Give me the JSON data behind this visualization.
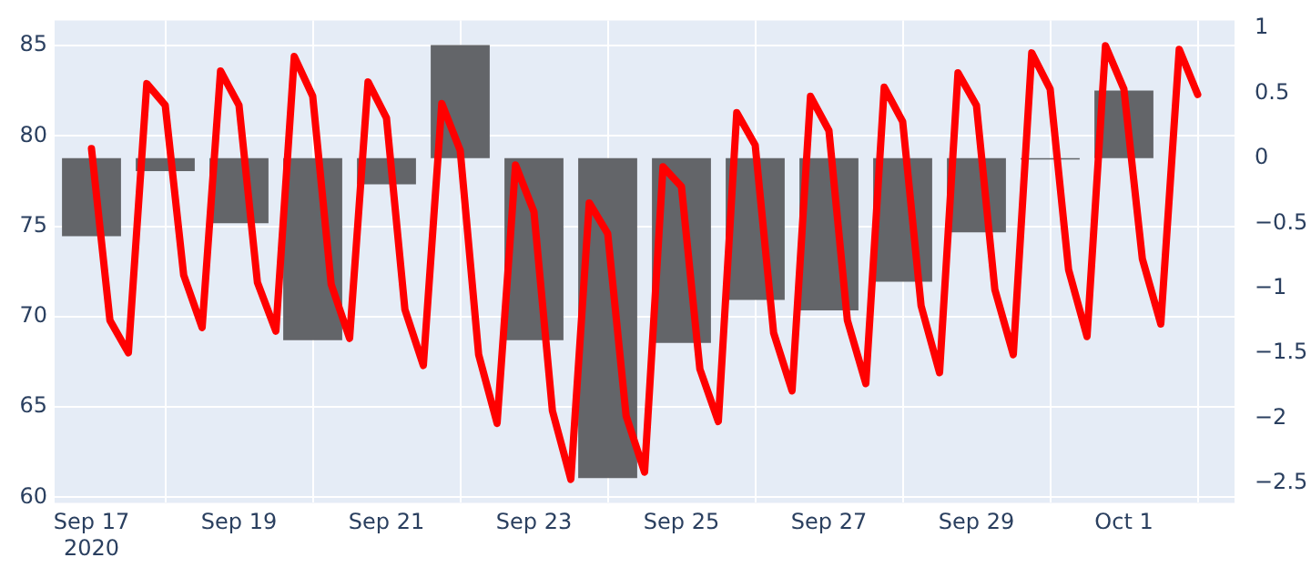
{
  "chart_data": {
    "type": "line",
    "series": [
      {
        "color": "#ff0000",
        "axis": "y",
        "x": [
          "2020-09-17T00:00",
          "2020-09-17T06:00",
          "2020-09-17T12:00",
          "2020-09-17T18:00",
          "2020-09-18T00:00",
          "2020-09-18T06:00",
          "2020-09-18T12:00",
          "2020-09-18T18:00",
          "2020-09-19T00:00",
          "2020-09-19T06:00",
          "2020-09-19T12:00",
          "2020-09-19T18:00",
          "2020-09-20T00:00",
          "2020-09-20T06:00",
          "2020-09-20T12:00",
          "2020-09-20T18:00",
          "2020-09-21T00:00",
          "2020-09-21T06:00",
          "2020-09-21T12:00",
          "2020-09-21T18:00",
          "2020-09-22T00:00",
          "2020-09-22T06:00",
          "2020-09-22T12:00",
          "2020-09-22T18:00",
          "2020-09-23T00:00",
          "2020-09-23T06:00",
          "2020-09-23T12:00",
          "2020-09-23T18:00",
          "2020-09-24T00:00",
          "2020-09-24T06:00",
          "2020-09-24T12:00",
          "2020-09-24T18:00",
          "2020-09-25T00:00",
          "2020-09-25T06:00",
          "2020-09-25T12:00",
          "2020-09-25T18:00",
          "2020-09-26T00:00",
          "2020-09-26T06:00",
          "2020-09-26T12:00",
          "2020-09-26T18:00",
          "2020-09-27T00:00",
          "2020-09-27T06:00",
          "2020-09-27T12:00",
          "2020-09-27T18:00",
          "2020-09-28T00:00",
          "2020-09-28T06:00",
          "2020-09-28T12:00",
          "2020-09-28T18:00",
          "2020-09-29T00:00",
          "2020-09-29T06:00",
          "2020-09-29T12:00",
          "2020-09-29T18:00",
          "2020-09-30T00:00",
          "2020-09-30T06:00",
          "2020-09-30T12:00",
          "2020-09-30T18:00",
          "2020-10-01T00:00",
          "2020-10-01T06:00",
          "2020-10-01T12:00",
          "2020-10-01T18:00",
          "2020-10-02T00:00"
        ],
        "values": [
          79.3,
          69.8,
          68.0,
          82.9,
          81.7,
          72.3,
          69.4,
          83.6,
          81.7,
          71.9,
          69.2,
          84.4,
          82.2,
          71.8,
          68.8,
          83.0,
          81.0,
          70.4,
          67.3,
          81.8,
          79.2,
          67.9,
          64.1,
          78.4,
          75.8,
          64.8,
          61.0,
          76.3,
          74.6,
          64.5,
          61.4,
          78.3,
          77.2,
          67.1,
          64.2,
          81.3,
          79.5,
          69.1,
          65.9,
          82.2,
          80.3,
          69.8,
          66.3,
          82.7,
          80.8,
          70.6,
          66.9,
          83.5,
          81.7,
          71.5,
          67.9,
          84.6,
          82.6,
          72.6,
          68.9,
          85.0,
          82.6,
          73.2,
          69.6,
          84.8,
          82.3
        ]
      },
      {
        "type": "bar",
        "color": "#636569",
        "axis": "y2",
        "x": [
          "2020-09-17",
          "2020-09-18",
          "2020-09-19",
          "2020-09-20",
          "2020-09-21",
          "2020-09-22",
          "2020-09-23",
          "2020-09-24",
          "2020-09-25",
          "2020-09-26",
          "2020-09-27",
          "2020-09-28",
          "2020-09-29",
          "2020-09-30",
          "2020-10-01"
        ],
        "values": [
          -0.6,
          -0.1,
          -0.5,
          -1.4,
          -0.2,
          0.87,
          -1.4,
          -2.46,
          -1.42,
          -1.09,
          -1.17,
          -0.95,
          -0.57,
          -0.01,
          0.52
        ]
      }
    ],
    "xlim": [
      "2020-09-16T12:00",
      "2020-10-02T12:00"
    ],
    "xticks": [
      {
        "value": "2020-09-17",
        "label": "Sep 17\n2020"
      },
      {
        "value": "2020-09-19",
        "label": "Sep 19"
      },
      {
        "value": "2020-09-21",
        "label": "Sep 21"
      },
      {
        "value": "2020-09-23",
        "label": "Sep 23"
      },
      {
        "value": "2020-09-25",
        "label": "Sep 25"
      },
      {
        "value": "2020-09-27",
        "label": "Sep 27"
      },
      {
        "value": "2020-09-29",
        "label": "Sep 29"
      },
      {
        "value": "2020-10-01",
        "label": "Oct 1"
      }
    ],
    "ylim": [
      59.7,
      86.4
    ],
    "yticks": [
      60,
      65,
      70,
      75,
      80,
      85
    ],
    "y2lim": [
      -2.65,
      1.06
    ],
    "y2ticks": [
      {
        "value": -2.5,
        "label": "−2.5"
      },
      {
        "value": -2,
        "label": "−2"
      },
      {
        "value": -1.5,
        "label": "−1.5"
      },
      {
        "value": -1,
        "label": "−1"
      },
      {
        "value": -0.5,
        "label": "−0.5"
      },
      0,
      0.5,
      1
    ],
    "grid": true,
    "marker": "none",
    "line_style": "solid"
  }
}
